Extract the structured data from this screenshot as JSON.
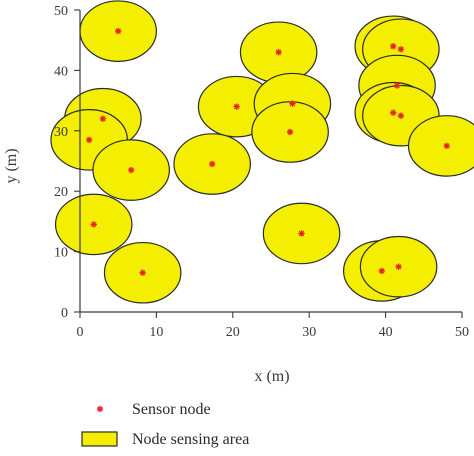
{
  "chart_data": {
    "type": "scatter",
    "xlabel": "x (m)",
    "ylabel": "y (m)",
    "xlim": [
      0,
      50
    ],
    "ylim": [
      0,
      50
    ],
    "x_ticks": [
      0,
      10,
      20,
      30,
      40,
      50
    ],
    "y_ticks": [
      0,
      10,
      20,
      30,
      40,
      50
    ],
    "grid": false,
    "sensing_radius": 5,
    "colors": {
      "area_fill": "#f4ef00",
      "area_stroke": "#2b2b2b",
      "node": "#e8212a",
      "axis": "#3a3a3a"
    },
    "series": [
      {
        "name": "Sensor node",
        "points": [
          [
            5,
            46.5
          ],
          [
            26,
            43
          ],
          [
            41,
            44
          ],
          [
            42,
            43.5
          ],
          [
            41.5,
            37.5
          ],
          [
            20.5,
            34
          ],
          [
            27.8,
            34.5
          ],
          [
            27.5,
            29.8
          ],
          [
            41,
            33
          ],
          [
            42,
            32.5
          ],
          [
            3,
            32
          ],
          [
            1.2,
            28.5
          ],
          [
            48,
            27.5
          ],
          [
            6.7,
            23.5
          ],
          [
            17.3,
            24.5
          ],
          [
            1.8,
            14.5
          ],
          [
            29,
            13
          ],
          [
            39.5,
            6.8
          ],
          [
            41.7,
            7.5
          ],
          [
            8.2,
            6.5
          ]
        ]
      }
    ],
    "legend": {
      "position": "bottom",
      "entries": [
        {
          "label": "Sensor node",
          "marker": "star"
        },
        {
          "label": "Node sensing area",
          "marker": "rect"
        }
      ]
    }
  }
}
